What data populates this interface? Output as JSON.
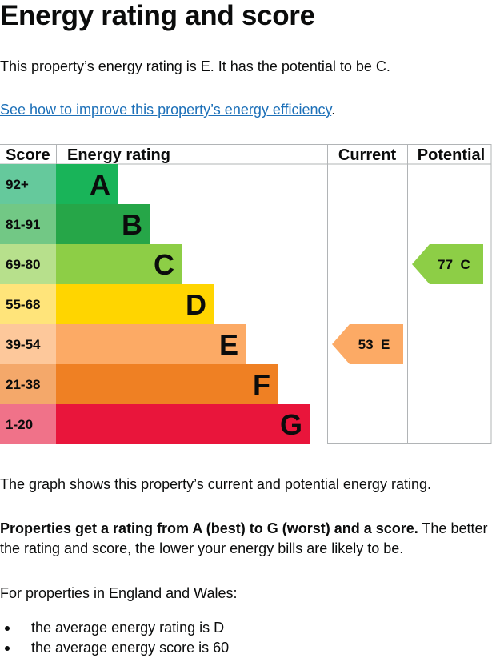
{
  "page": {
    "title": "Energy rating and score",
    "intro": "This property’s energy rating is E. It has the potential to be C.",
    "improve_link": "See how to improve this property’s energy efficiency",
    "improve_link_suffix": ".",
    "graph_note": "The graph shows this property’s current and potential energy rating.",
    "rating_note_bold": "Properties get a rating from A (best) to G (worst) and a score.",
    "rating_note_rest": " The better the rating and score, the lower your energy bills are likely to be.",
    "region_note": "For properties in England and Wales:",
    "averages": [
      "the average energy rating is D",
      "the average energy score is 60"
    ]
  },
  "chart_data": {
    "type": "table",
    "headers": {
      "score": "Score",
      "rating": "Energy rating",
      "current": "Current",
      "potential": "Potential"
    },
    "bands": [
      {
        "band": "A",
        "score_range": "92+",
        "min": 92,
        "max": 100,
        "color": "#19b459",
        "score_color": "#65c99c"
      },
      {
        "band": "B",
        "score_range": "81-91",
        "min": 81,
        "max": 91,
        "color": "#26a648",
        "score_color": "#72c885"
      },
      {
        "band": "C",
        "score_range": "69-80",
        "min": 69,
        "max": 80,
        "color": "#8dce46",
        "score_color": "#b7e08c"
      },
      {
        "band": "D",
        "score_range": "55-68",
        "min": 55,
        "max": 68,
        "color": "#ffd500",
        "score_color": "#ffe47a"
      },
      {
        "band": "E",
        "score_range": "39-54",
        "min": 39,
        "max": 54,
        "color": "#fcaa65",
        "score_color": "#fdc89b"
      },
      {
        "band": "F",
        "score_range": "21-38",
        "min": 21,
        "max": 38,
        "color": "#ef8023",
        "score_color": "#f4a86a"
      },
      {
        "band": "G",
        "score_range": "1-20",
        "min": 1,
        "max": 20,
        "color": "#e9153b",
        "score_color": "#f07289"
      }
    ],
    "current": {
      "score": 53,
      "band": "E",
      "label": "53  E"
    },
    "potential": {
      "score": 77,
      "band": "C",
      "label": "77  C"
    }
  }
}
